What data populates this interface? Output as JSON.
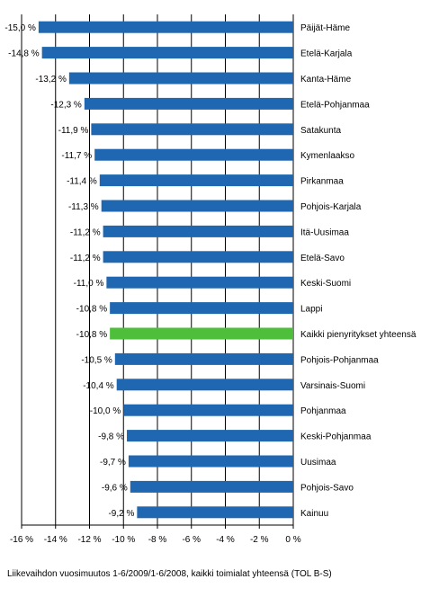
{
  "chart_data": {
    "type": "bar",
    "orientation": "horizontal",
    "categories": [
      "Päijät-Häme",
      "Etelä-Karjala",
      "Kanta-Häme",
      "Etelä-Pohjanmaa",
      "Satakunta",
      "Kymenlaakso",
      "Pirkanmaa",
      "Pohjois-Karjala",
      "Itä-Uusimaa",
      "Etelä-Savo",
      "Keski-Suomi",
      "Lappi",
      "Kaikki pienyritykset yhteensä",
      "Pohjois-Pohjanmaa",
      "Varsinais-Suomi",
      "Pohjanmaa",
      "Keski-Pohjanmaa",
      "Uusimaa",
      "Pohjois-Savo",
      "Kainuu"
    ],
    "values": [
      -15.0,
      -14.8,
      -13.2,
      -12.3,
      -11.9,
      -11.7,
      -11.4,
      -11.3,
      -11.2,
      -11.2,
      -11.0,
      -10.8,
      -10.8,
      -10.5,
      -10.4,
      -10.0,
      -9.8,
      -9.7,
      -9.6,
      -9.2
    ],
    "value_labels": [
      "-15,0 %",
      "-14,8 %",
      "-13,2 %",
      "-12,3 %",
      "-11,9 %",
      "-11,7 %",
      "-11,4 %",
      "-11,3 %",
      "-11,2 %",
      "-11,2 %",
      "-11,0 %",
      "-10,8 %",
      "-10,8 %",
      "-10,5 %",
      "-10,4 %",
      "-10,0 %",
      "-9,8 %",
      "-9,7 %",
      "-9,6 %",
      "-9,2 %"
    ],
    "highlight_index": 12,
    "xlim": [
      -16,
      0
    ],
    "xticks": [
      -16,
      -14,
      -12,
      -10,
      -8,
      -6,
      -4,
      -2,
      0
    ],
    "xtick_labels": [
      "-16 %",
      "-14 %",
      "-12 %",
      "-10 %",
      "-8 %",
      "-6 %",
      "-4 %",
      "-2 %",
      "0 %"
    ],
    "grid": "vertical",
    "title": "",
    "xlabel": "Liikevaihdon vuosimuutos 1-6/2009/1-6/2008, kaikki toimialat yhteensä (TOL B-S)",
    "ylabel": "",
    "colors": {
      "bar": "#1f67b0",
      "highlight": "#4dbf3a",
      "grid": "#000000",
      "axis": "#000000"
    }
  }
}
